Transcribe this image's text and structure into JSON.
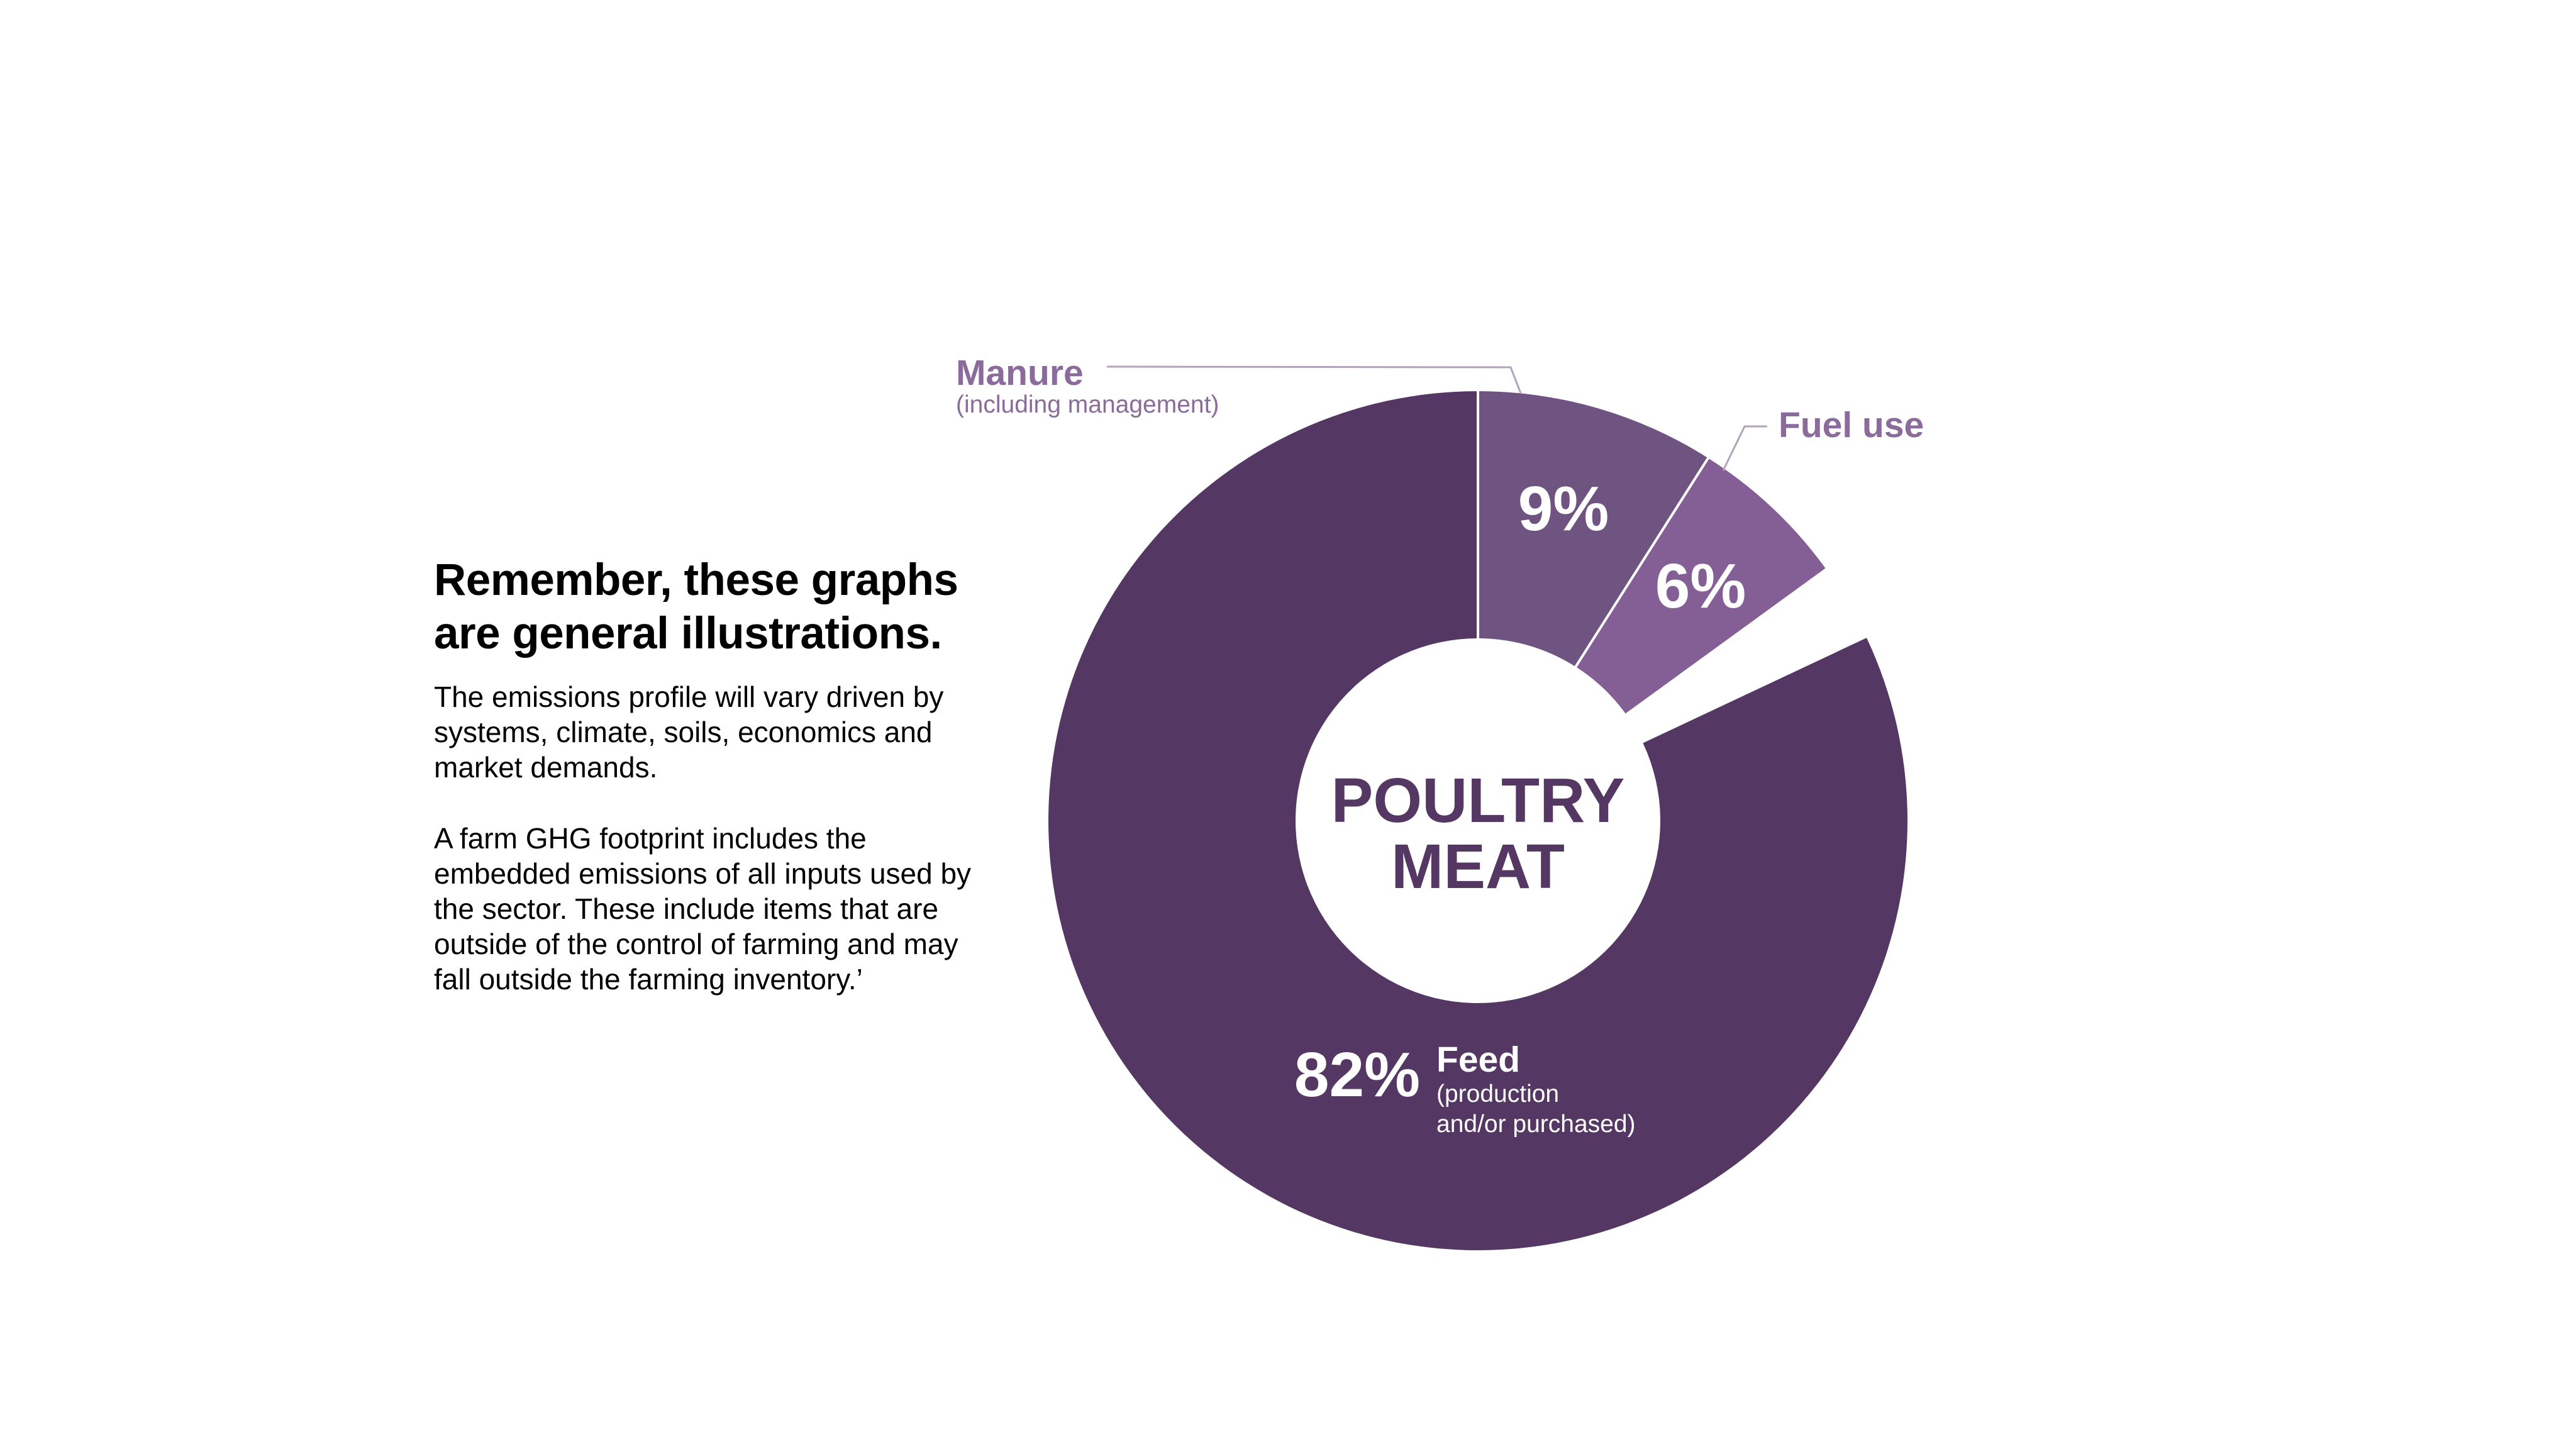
{
  "chart_data": {
    "type": "pie",
    "center_label": [
      "POULTRY",
      "MEAT"
    ],
    "slices": [
      {
        "label": "Manure",
        "sublabel": "(including management)",
        "value": 9,
        "value_label": "9%",
        "color": "#6f5380"
      },
      {
        "label": "Fuel use",
        "sublabel": "",
        "value": 6,
        "value_label": "6%",
        "color": "#845f95"
      },
      {
        "label": "Feed",
        "sublabel": "(production and/or purchased)",
        "sublabel_lines": [
          "(production",
          "and/or purchased)"
        ],
        "value": 82,
        "value_label": "82%",
        "color": "#553763"
      }
    ],
    "label_color": "#8b6a9c",
    "leader_color": "#b3a2bb"
  },
  "side": {
    "heading_lines": [
      "Remember, these graphs",
      "are general illustrations."
    ],
    "paragraph1": "The emissions profile will vary driven by systems, climate, soils, economics and market demands.",
    "paragraph2": "A farm GHG footprint includes the embedded emissions of all inputs used by the sector. These include items that are outside of the control of farming and may fall outside the farming inventory.’"
  }
}
